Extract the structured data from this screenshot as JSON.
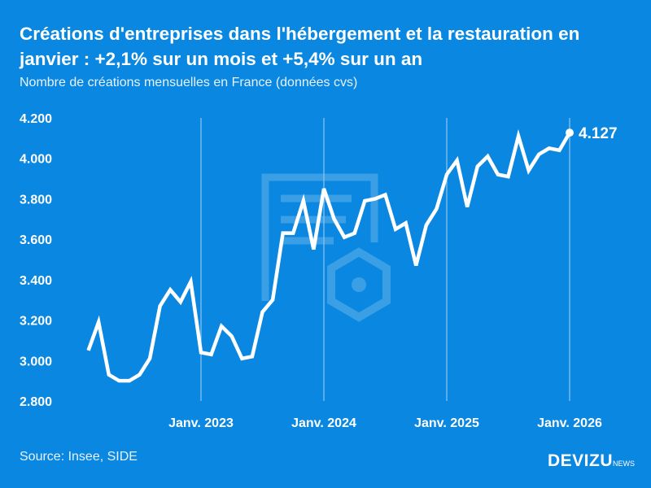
{
  "title": "Créations d'entreprises dans l'hébergement et la restauration en janvier : +2,1% sur un mois et +5,4% sur un an",
  "subtitle": "Nombre de créations mensuelles en France (données cvs)",
  "source": "Source: Insee, SIDE",
  "logo": {
    "main": "DEVIZU",
    "sub": "NEWS"
  },
  "colors": {
    "background": "#0a87e0",
    "line": "#ffffff",
    "gridline": "#8cc6f0"
  },
  "chart_data": {
    "type": "line",
    "title": "",
    "xlabel": "",
    "ylabel": "",
    "ylim": [
      2800,
      4200
    ],
    "yticks": [
      2800,
      3000,
      3200,
      3400,
      3600,
      3800,
      4000,
      4200
    ],
    "ytick_labels": [
      "2.800",
      "3.000",
      "3.200",
      "3.400",
      "3.600",
      "3.800",
      "4.000",
      "4.200"
    ],
    "xticks": [
      "2023-01",
      "2024-01",
      "2025-01",
      "2026-01"
    ],
    "xtick_labels": [
      "Janv. 2023",
      "Janv. 2024",
      "Janv. 2025",
      "Janv. 2026"
    ],
    "grid": "vertical lines at January",
    "x": [
      "2022-02",
      "2022-03",
      "2022-04",
      "2022-05",
      "2022-06",
      "2022-07",
      "2022-08",
      "2022-09",
      "2022-10",
      "2022-11",
      "2022-12",
      "2023-01",
      "2023-02",
      "2023-03",
      "2023-04",
      "2023-05",
      "2023-06",
      "2023-07",
      "2023-08",
      "2023-09",
      "2023-10",
      "2023-11",
      "2023-12",
      "2024-01",
      "2024-02",
      "2024-03",
      "2024-04",
      "2024-05",
      "2024-06",
      "2024-07",
      "2024-08",
      "2024-09",
      "2024-10",
      "2024-11",
      "2024-12",
      "2025-01",
      "2025-02",
      "2025-03",
      "2025-04",
      "2025-05",
      "2025-06",
      "2025-07",
      "2025-08",
      "2025-09",
      "2025-10",
      "2025-11",
      "2025-12",
      "2026-01"
    ],
    "values": [
      3050,
      3190,
      2930,
      2900,
      2900,
      2930,
      3010,
      3270,
      3350,
      3290,
      3390,
      3040,
      3030,
      3170,
      3120,
      3010,
      3020,
      3240,
      3300,
      3630,
      3630,
      3790,
      3550,
      3850,
      3700,
      3610,
      3630,
      3790,
      3800,
      3820,
      3650,
      3680,
      3470,
      3670,
      3750,
      3920,
      3990,
      3760,
      3960,
      4010,
      3920,
      3910,
      4110,
      3940,
      4020,
      4050,
      4040,
      4127
    ],
    "last_label": "4.127"
  }
}
